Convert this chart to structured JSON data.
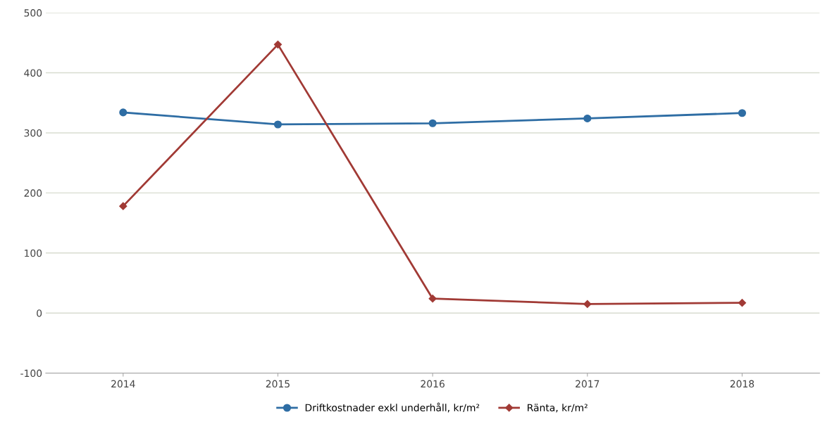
{
  "chart_data": {
    "type": "line",
    "categories": [
      "2014",
      "2015",
      "2016",
      "2017",
      "2018"
    ],
    "series": [
      {
        "name": "Driftkostnader exkl underhåll, kr/m²",
        "color": "#2e6da4",
        "values": [
          334,
          314,
          316,
          324,
          333
        ],
        "marker": "circle"
      },
      {
        "name": "Ränta, kr/m²",
        "color": "#a13a35",
        "values": [
          178,
          447,
          24,
          15,
          17
        ],
        "marker": "diamond"
      }
    ],
    "ylim": [
      -100,
      500
    ],
    "yticks": [
      {
        "value": -100,
        "label": "-100"
      },
      0,
      100,
      200,
      300,
      400,
      500
    ],
    "grid": "y",
    "legend": "bottom",
    "line_style": "solid"
  }
}
